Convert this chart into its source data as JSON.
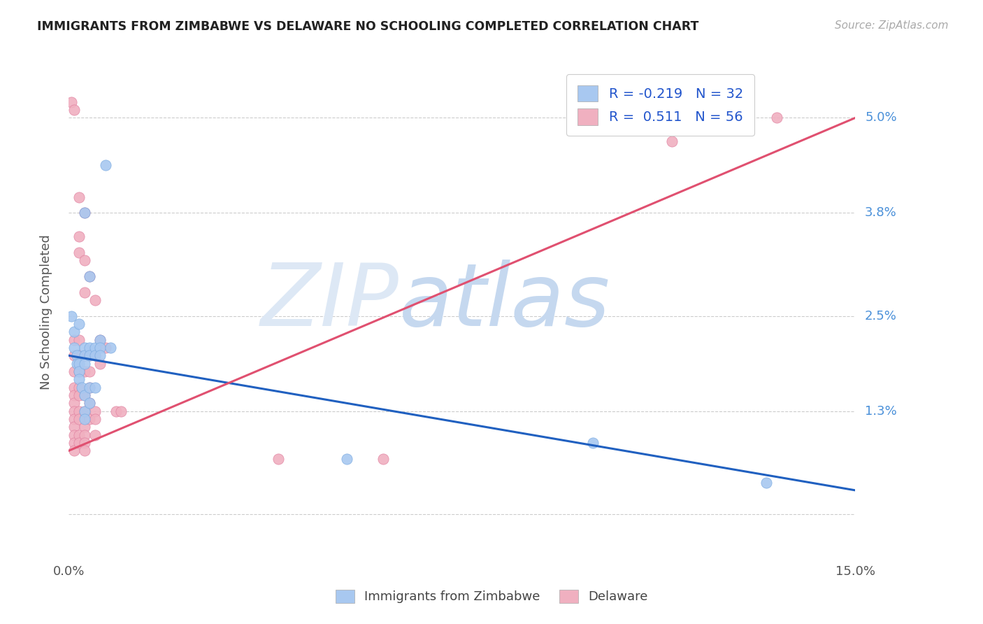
{
  "title": "IMMIGRANTS FROM ZIMBABWE VS DELAWARE NO SCHOOLING COMPLETED CORRELATION CHART",
  "source": "Source: ZipAtlas.com",
  "ylabel": "No Schooling Completed",
  "yticks": [
    0.0,
    0.013,
    0.025,
    0.038,
    0.05
  ],
  "ytick_labels": [
    "",
    "1.3%",
    "2.5%",
    "3.8%",
    "5.0%"
  ],
  "xmin": 0.0,
  "xmax": 0.15,
  "ymin": -0.006,
  "ymax": 0.057,
  "blue_color": "#a8c8f0",
  "pink_color": "#f0b0c0",
  "blue_edge": "#7aaae0",
  "pink_edge": "#e080a0",
  "watermark_zip": "ZIP",
  "watermark_atlas": "atlas",
  "blue_scatter": [
    [
      0.0005,
      0.025
    ],
    [
      0.001,
      0.023
    ],
    [
      0.001,
      0.021
    ],
    [
      0.0015,
      0.02
    ],
    [
      0.0015,
      0.019
    ],
    [
      0.002,
      0.024
    ],
    [
      0.002,
      0.019
    ],
    [
      0.002,
      0.018
    ],
    [
      0.002,
      0.017
    ],
    [
      0.0025,
      0.016
    ],
    [
      0.003,
      0.038
    ],
    [
      0.003,
      0.021
    ],
    [
      0.003,
      0.02
    ],
    [
      0.003,
      0.019
    ],
    [
      0.003,
      0.015
    ],
    [
      0.003,
      0.013
    ],
    [
      0.003,
      0.012
    ],
    [
      0.004,
      0.03
    ],
    [
      0.004,
      0.021
    ],
    [
      0.004,
      0.02
    ],
    [
      0.004,
      0.016
    ],
    [
      0.004,
      0.014
    ],
    [
      0.005,
      0.021
    ],
    [
      0.005,
      0.02
    ],
    [
      0.005,
      0.016
    ],
    [
      0.006,
      0.022
    ],
    [
      0.006,
      0.021
    ],
    [
      0.006,
      0.02
    ],
    [
      0.007,
      0.044
    ],
    [
      0.008,
      0.021
    ],
    [
      0.053,
      0.007
    ],
    [
      0.1,
      0.009
    ],
    [
      0.133,
      0.004
    ]
  ],
  "pink_scatter": [
    [
      0.0005,
      0.052
    ],
    [
      0.001,
      0.051
    ],
    [
      0.001,
      0.022
    ],
    [
      0.001,
      0.02
    ],
    [
      0.001,
      0.018
    ],
    [
      0.001,
      0.016
    ],
    [
      0.001,
      0.015
    ],
    [
      0.001,
      0.014
    ],
    [
      0.001,
      0.013
    ],
    [
      0.001,
      0.012
    ],
    [
      0.001,
      0.011
    ],
    [
      0.001,
      0.01
    ],
    [
      0.001,
      0.009
    ],
    [
      0.001,
      0.008
    ],
    [
      0.002,
      0.04
    ],
    [
      0.002,
      0.035
    ],
    [
      0.002,
      0.033
    ],
    [
      0.002,
      0.022
    ],
    [
      0.002,
      0.02
    ],
    [
      0.002,
      0.018
    ],
    [
      0.002,
      0.016
    ],
    [
      0.002,
      0.015
    ],
    [
      0.002,
      0.013
    ],
    [
      0.002,
      0.012
    ],
    [
      0.002,
      0.01
    ],
    [
      0.002,
      0.009
    ],
    [
      0.003,
      0.038
    ],
    [
      0.003,
      0.032
    ],
    [
      0.003,
      0.028
    ],
    [
      0.003,
      0.02
    ],
    [
      0.003,
      0.018
    ],
    [
      0.003,
      0.015
    ],
    [
      0.003,
      0.013
    ],
    [
      0.003,
      0.011
    ],
    [
      0.003,
      0.01
    ],
    [
      0.003,
      0.009
    ],
    [
      0.003,
      0.008
    ],
    [
      0.004,
      0.03
    ],
    [
      0.004,
      0.02
    ],
    [
      0.004,
      0.018
    ],
    [
      0.004,
      0.016
    ],
    [
      0.004,
      0.014
    ],
    [
      0.004,
      0.012
    ],
    [
      0.005,
      0.027
    ],
    [
      0.005,
      0.02
    ],
    [
      0.005,
      0.013
    ],
    [
      0.005,
      0.012
    ],
    [
      0.005,
      0.01
    ],
    [
      0.006,
      0.022
    ],
    [
      0.006,
      0.019
    ],
    [
      0.007,
      0.021
    ],
    [
      0.009,
      0.013
    ],
    [
      0.01,
      0.013
    ],
    [
      0.04,
      0.007
    ],
    [
      0.06,
      0.007
    ],
    [
      0.115,
      0.047
    ],
    [
      0.135,
      0.05
    ]
  ],
  "blue_line_x": [
    0.0,
    0.15
  ],
  "blue_line_y": [
    0.02,
    0.003
  ],
  "pink_line_x": [
    0.0,
    0.15
  ],
  "pink_line_y": [
    0.008,
    0.05
  ]
}
